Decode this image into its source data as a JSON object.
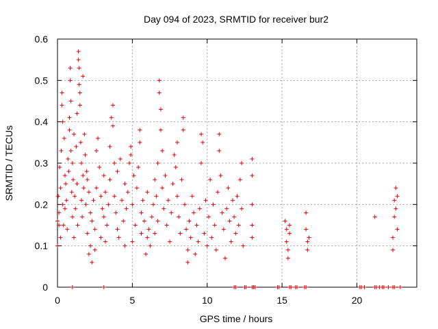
{
  "chart_data": {
    "type": "scatter",
    "title": "Day 094 of 2023, SRMTID for receiver bur2",
    "xlabel": "GPS time / hours",
    "ylabel": "SRMTID / TECUs",
    "xlim": [
      0,
      24
    ],
    "ylim": [
      0,
      0.6
    ],
    "xticks": [
      0,
      5,
      10,
      15,
      20
    ],
    "yticks": [
      0,
      0.1,
      0.2,
      0.3,
      0.4,
      0.5,
      0.6
    ],
    "ytick_labels": [
      "0",
      "0.1",
      "0.2",
      "0.3",
      "0.4",
      "0.5",
      "0.6"
    ],
    "grid": true,
    "marker": "+",
    "color": "#e00000",
    "series": [
      {
        "name": "bur2",
        "points": [
          [
            0.0,
            0.1
          ],
          [
            0.0,
            0.16
          ],
          [
            0.05,
            0.22
          ],
          [
            0.1,
            0.15
          ],
          [
            0.1,
            0.18
          ],
          [
            0.15,
            0.29
          ],
          [
            0.2,
            0.12
          ],
          [
            0.2,
            0.24
          ],
          [
            0.25,
            0.33
          ],
          [
            0.3,
            0.47
          ],
          [
            0.3,
            0.44
          ],
          [
            0.35,
            0.4
          ],
          [
            0.35,
            0.2
          ],
          [
            0.4,
            0.15
          ],
          [
            0.45,
            0.36
          ],
          [
            0.5,
            0.27
          ],
          [
            0.5,
            0.19
          ],
          [
            0.55,
            0.25
          ],
          [
            0.6,
            0.21
          ],
          [
            0.65,
            0.14
          ],
          [
            0.7,
            0.31
          ],
          [
            0.75,
            0.28
          ],
          [
            0.8,
            0.38
          ],
          [
            0.8,
            0.41
          ],
          [
            0.85,
            0.53
          ],
          [
            0.85,
            0.5
          ],
          [
            0.9,
            0.45
          ],
          [
            0.9,
            0.33
          ],
          [
            0.95,
            0.23
          ],
          [
            1.0,
            0.17
          ],
          [
            1.0,
            0.3
          ],
          [
            1.05,
            0.26
          ],
          [
            1.1,
            0.12
          ],
          [
            1.1,
            0.37
          ],
          [
            1.15,
            0.22
          ],
          [
            1.2,
            0.19
          ],
          [
            1.25,
            0.34
          ],
          [
            1.3,
            0.42
          ],
          [
            1.3,
            0.25
          ],
          [
            1.35,
            0.15
          ],
          [
            1.4,
            0.57
          ],
          [
            1.4,
            0.55
          ],
          [
            1.45,
            0.53
          ],
          [
            1.45,
            0.49
          ],
          [
            1.5,
            0.47
          ],
          [
            1.5,
            0.44
          ],
          [
            1.55,
            0.35
          ],
          [
            1.6,
            0.3
          ],
          [
            1.6,
            0.21
          ],
          [
            1.65,
            0.17
          ],
          [
            1.7,
            0.51
          ],
          [
            1.7,
            0.27
          ],
          [
            1.75,
            0.24
          ],
          [
            1.8,
            0.37
          ],
          [
            1.85,
            0.32
          ],
          [
            1.9,
            0.2
          ],
          [
            1.95,
            0.28
          ],
          [
            2.0,
            0.13
          ],
          [
            2.0,
            0.26
          ],
          [
            2.1,
            0.23
          ],
          [
            2.1,
            0.08
          ],
          [
            2.2,
            0.18
          ],
          [
            2.2,
            0.1
          ],
          [
            2.3,
            0.16
          ],
          [
            2.3,
            0.06
          ],
          [
            2.4,
            0.21
          ],
          [
            2.5,
            0.09
          ],
          [
            2.5,
            0.14
          ],
          [
            2.6,
            0.24
          ],
          [
            2.6,
            0.33
          ],
          [
            2.7,
            0.36
          ],
          [
            2.8,
            0.29
          ],
          [
            2.9,
            0.22
          ],
          [
            2.9,
            0.12
          ],
          [
            3.0,
            0.19
          ],
          [
            3.1,
            0.17
          ],
          [
            3.1,
            0.27
          ],
          [
            3.2,
            0.11
          ],
          [
            3.2,
            0.23
          ],
          [
            3.3,
            0.15
          ],
          [
            3.4,
            0.2
          ],
          [
            3.5,
            0.34
          ],
          [
            3.5,
            0.26
          ],
          [
            3.6,
            0.41
          ],
          [
            3.7,
            0.44
          ],
          [
            3.7,
            0.39
          ],
          [
            3.8,
            0.3
          ],
          [
            3.8,
            0.22
          ],
          [
            3.9,
            0.18
          ],
          [
            4.0,
            0.14
          ],
          [
            4.0,
            0.28
          ],
          [
            4.1,
            0.12
          ],
          [
            4.2,
            0.31
          ],
          [
            4.3,
            0.21
          ],
          [
            4.4,
            0.16
          ],
          [
            4.5,
            0.25
          ],
          [
            4.5,
            0.1
          ],
          [
            4.6,
            0.19
          ],
          [
            4.7,
            0.23
          ],
          [
            4.8,
            0.3
          ],
          [
            4.9,
            0.34
          ],
          [
            4.9,
            0.32
          ],
          [
            5.0,
            0.2
          ],
          [
            5.0,
            0.11
          ],
          [
            5.1,
            0.27
          ],
          [
            5.2,
            0.15
          ],
          [
            5.3,
            0.24
          ],
          [
            5.4,
            0.29
          ],
          [
            5.5,
            0.38
          ],
          [
            5.5,
            0.35
          ],
          [
            5.6,
            0.18
          ],
          [
            5.6,
            0.13
          ],
          [
            5.7,
            0.21
          ],
          [
            5.8,
            0.16
          ],
          [
            5.9,
            0.08
          ],
          [
            6.0,
            0.12
          ],
          [
            6.0,
            0.23
          ],
          [
            6.1,
            0.14
          ],
          [
            6.2,
            0.1
          ],
          [
            6.3,
            0.17
          ],
          [
            6.4,
            0.2
          ],
          [
            6.5,
            0.26
          ],
          [
            6.5,
            0.13
          ],
          [
            6.6,
            0.22
          ],
          [
            6.7,
            0.3
          ],
          [
            6.7,
            0.16
          ],
          [
            6.8,
            0.5
          ],
          [
            6.8,
            0.47
          ],
          [
            6.9,
            0.43
          ],
          [
            6.9,
            0.38
          ],
          [
            7.0,
            0.33
          ],
          [
            7.0,
            0.24
          ],
          [
            7.1,
            0.19
          ],
          [
            7.2,
            0.27
          ],
          [
            7.3,
            0.15
          ],
          [
            7.4,
            0.21
          ],
          [
            7.5,
            0.11
          ],
          [
            7.6,
            0.18
          ],
          [
            7.7,
            0.25
          ],
          [
            7.8,
            0.32
          ],
          [
            7.9,
            0.29
          ],
          [
            8.0,
            0.35
          ],
          [
            8.0,
            0.22
          ],
          [
            8.1,
            0.17
          ],
          [
            8.2,
            0.13
          ],
          [
            8.3,
            0.26
          ],
          [
            8.4,
            0.41
          ],
          [
            8.4,
            0.38
          ],
          [
            8.5,
            0.2
          ],
          [
            8.6,
            0.14
          ],
          [
            8.7,
            0.09
          ],
          [
            8.7,
            0.06
          ],
          [
            8.8,
            0.16
          ],
          [
            8.9,
            0.12
          ],
          [
            9.0,
            0.22
          ],
          [
            9.1,
            0.18
          ],
          [
            9.2,
            0.08
          ],
          [
            9.3,
            0.15
          ],
          [
            9.4,
            0.11
          ],
          [
            9.5,
            0.19
          ],
          [
            9.6,
            0.3
          ],
          [
            9.6,
            0.37
          ],
          [
            9.7,
            0.35
          ],
          [
            9.8,
            0.13
          ],
          [
            9.9,
            0.21
          ],
          [
            10.0,
            0.1
          ],
          [
            10.1,
            0.17
          ],
          [
            10.2,
            0.26
          ],
          [
            10.3,
            0.12
          ],
          [
            10.4,
            0.2
          ],
          [
            10.5,
            0.15
          ],
          [
            10.6,
            0.09
          ],
          [
            10.7,
            0.23
          ],
          [
            10.8,
            0.37
          ],
          [
            10.8,
            0.33
          ],
          [
            10.9,
            0.27
          ],
          [
            11.0,
            0.18
          ],
          [
            11.1,
            0.14
          ],
          [
            11.2,
            0.07
          ],
          [
            11.3,
            0.19
          ],
          [
            11.4,
            0.24
          ],
          [
            11.5,
            0.16
          ],
          [
            11.6,
            0.11
          ],
          [
            11.7,
            0.21
          ],
          [
            11.8,
            0.17
          ],
          [
            11.9,
            0.13
          ],
          [
            12.0,
            0.22
          ],
          [
            12.1,
            0.15
          ],
          [
            12.2,
            0.26
          ],
          [
            12.3,
            0.3
          ],
          [
            12.3,
            0.19
          ],
          [
            12.4,
            0.1
          ],
          [
            13.0,
            0.31
          ],
          [
            13.0,
            0.27
          ],
          [
            13.0,
            0.2
          ],
          [
            13.0,
            0.15
          ],
          [
            13.0,
            0.12
          ],
          [
            15.2,
            0.16
          ],
          [
            15.3,
            0.14
          ],
          [
            15.3,
            0.11
          ],
          [
            15.4,
            0.09
          ],
          [
            15.4,
            0.07
          ],
          [
            15.5,
            0.13
          ],
          [
            15.5,
            0.15
          ],
          [
            16.6,
            0.18
          ],
          [
            16.6,
            0.14
          ],
          [
            16.7,
            0.11
          ],
          [
            16.7,
            0.09
          ],
          [
            16.8,
            0.12
          ],
          [
            21.2,
            0.17
          ],
          [
            22.4,
            0.12
          ],
          [
            22.4,
            0.09
          ],
          [
            22.5,
            0.21
          ],
          [
            22.5,
            0.17
          ],
          [
            22.6,
            0.24
          ],
          [
            22.6,
            0.19
          ],
          [
            22.7,
            0.14
          ],
          [
            22.7,
            0.22
          ],
          [
            1.0,
            0.0
          ],
          [
            3.1,
            0.0
          ],
          [
            11.8,
            0.0
          ],
          [
            11.9,
            0.0
          ],
          [
            12.5,
            0.0
          ],
          [
            12.6,
            0.0
          ],
          [
            13.0,
            0.0
          ],
          [
            13.1,
            0.0
          ],
          [
            13.2,
            0.0
          ],
          [
            14.7,
            0.0
          ],
          [
            14.8,
            0.0
          ],
          [
            15.5,
            0.0
          ],
          [
            15.6,
            0.0
          ],
          [
            15.9,
            0.0
          ],
          [
            16.0,
            0.0
          ],
          [
            16.5,
            0.0
          ],
          [
            16.6,
            0.0
          ],
          [
            20.2,
            0.0
          ],
          [
            20.3,
            0.0
          ],
          [
            20.5,
            0.0
          ],
          [
            21.2,
            0.0
          ],
          [
            21.3,
            0.0
          ],
          [
            21.5,
            0.0
          ],
          [
            21.7,
            0.0
          ],
          [
            21.8,
            0.0
          ],
          [
            22.1,
            0.0
          ],
          [
            22.4,
            0.0
          ],
          [
            22.5,
            0.0
          ],
          [
            22.9,
            0.0
          ]
        ]
      }
    ]
  }
}
